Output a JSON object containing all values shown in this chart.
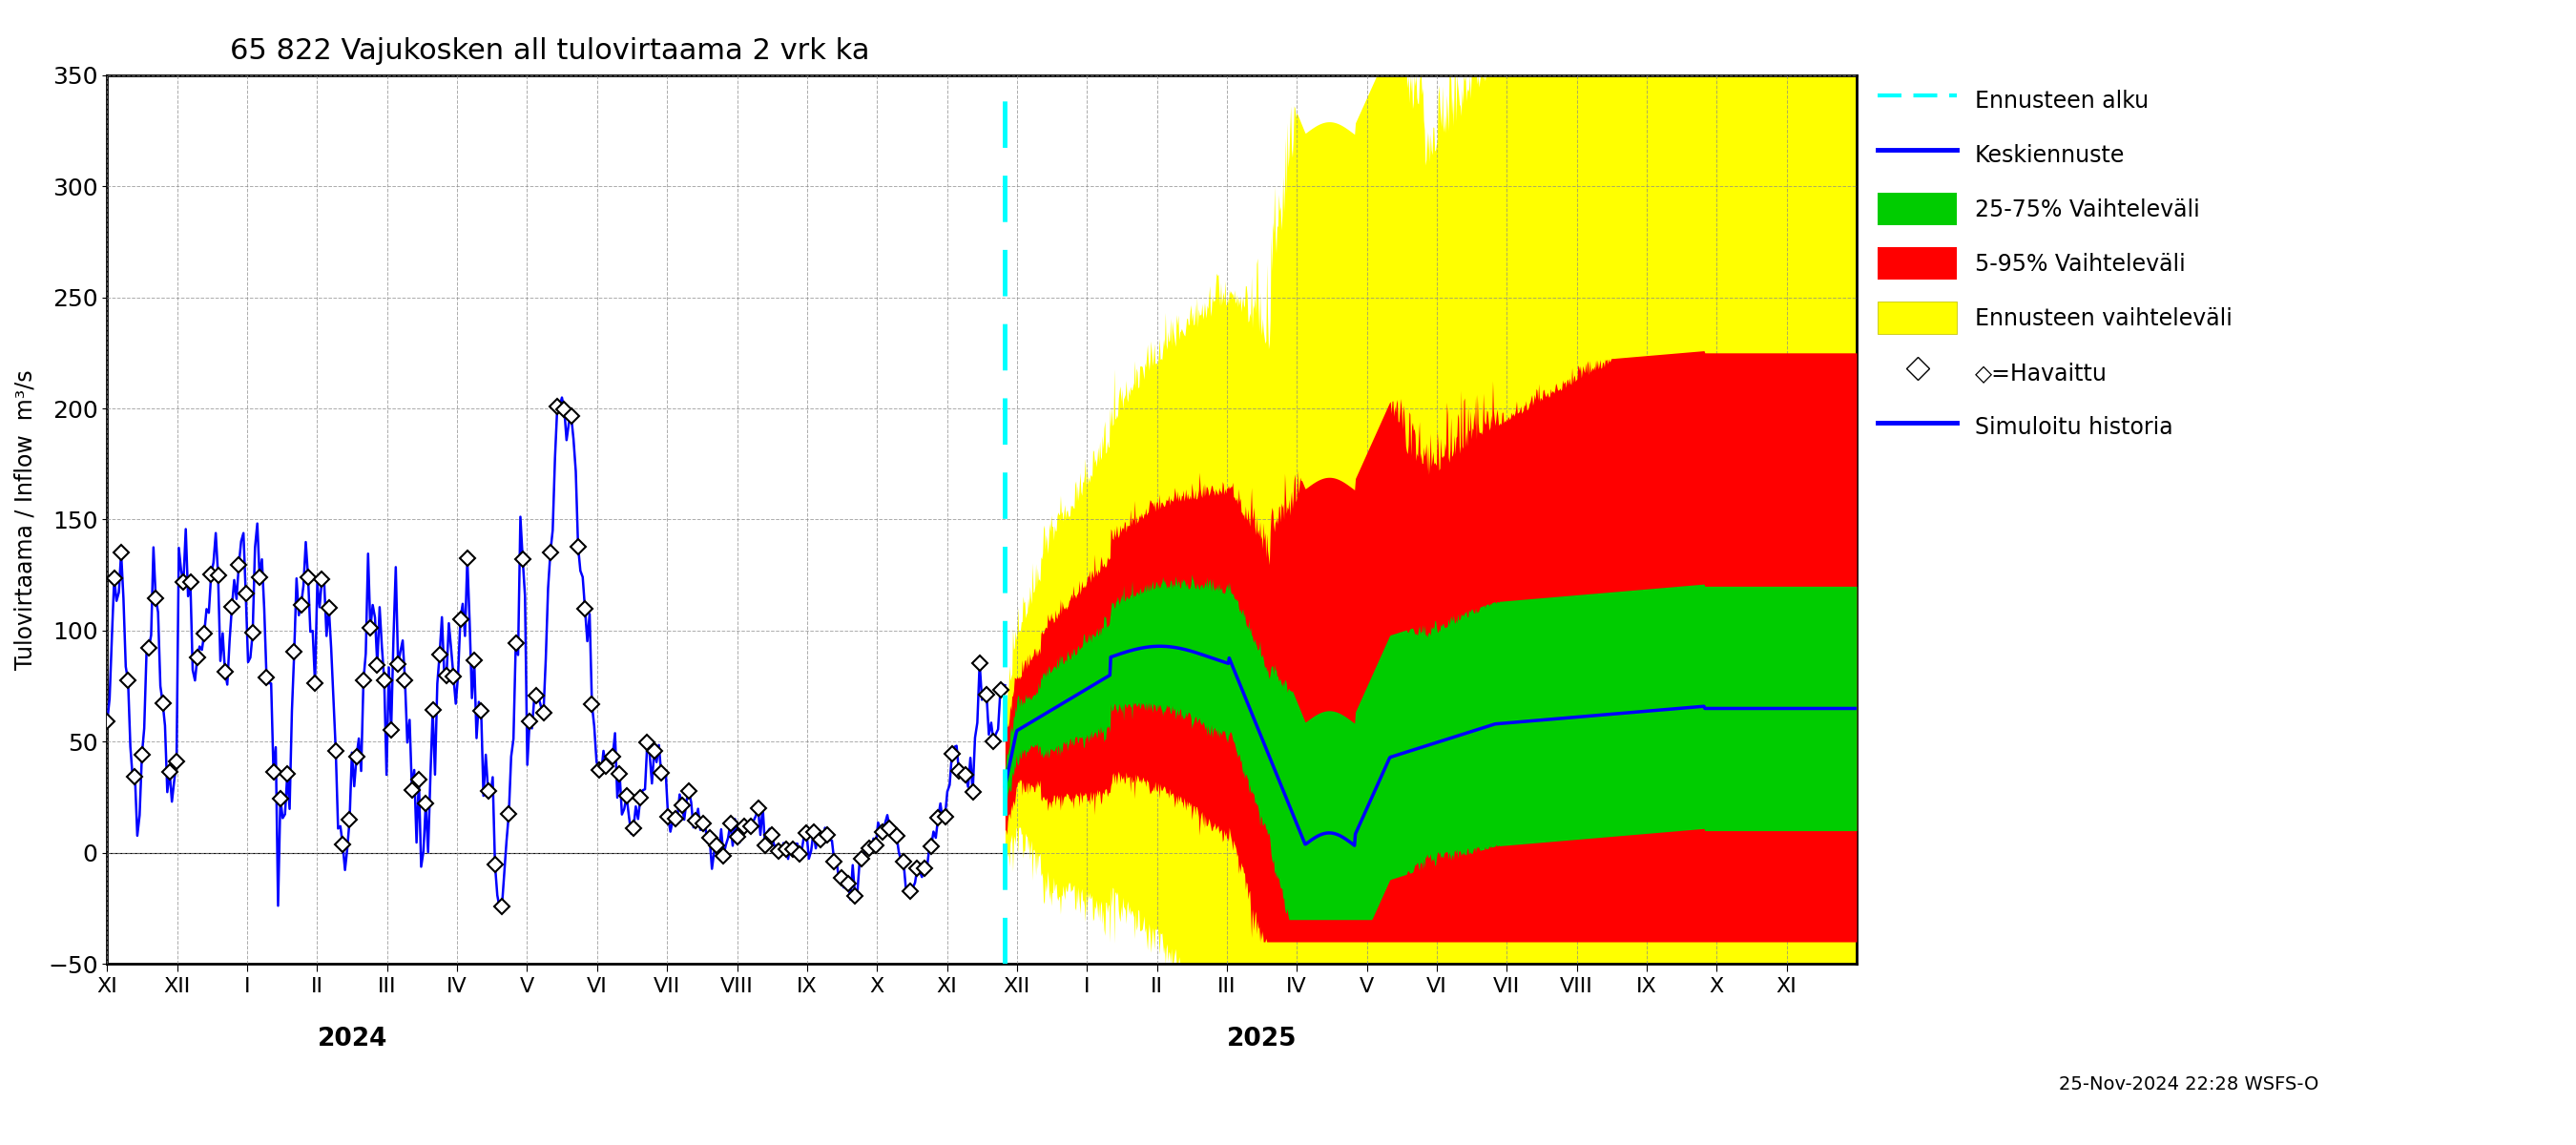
{
  "title": "65 822 Vajukosken all tulovirtaama 2 vrk ka",
  "ylabel": "Tulovirtaama / Inflow  m³/s",
  "ylim": [
    -50,
    350
  ],
  "yticks": [
    -50,
    0,
    50,
    100,
    150,
    200,
    250,
    300,
    350
  ],
  "xlim": [
    0,
    25
  ],
  "forecast_start_x": 12.83,
  "month_labels": [
    "XI",
    "XII",
    "I",
    "II",
    "III",
    "IV",
    "V",
    "VI",
    "VII",
    "VIII",
    "IX",
    "X",
    "XI",
    "XII",
    "I",
    "II",
    "III",
    "IV",
    "V",
    "VI",
    "VII",
    "VIII",
    "IX",
    "X",
    "XI"
  ],
  "year_2024_x": 3.5,
  "year_2025_x": 16.5,
  "year_2024": "2024",
  "year_2025": "2025",
  "timestamp": "25-Nov-2024 22:28 WSFS-O",
  "color_yellow": "#FFFF00",
  "color_red": "#FF0000",
  "color_green": "#00CC00",
  "color_blue": "#0000FF",
  "color_cyan": "#00FFFF",
  "color_black": "#000000",
  "legend_labels": [
    "Ennusteen alku",
    "Keskiennuste",
    "25-75% Vaihteleväli",
    "5-95% Vaihteleväli",
    "Ennusteen vaihteleväli",
    "◇=Havaittu",
    "Simuloitu historia"
  ]
}
